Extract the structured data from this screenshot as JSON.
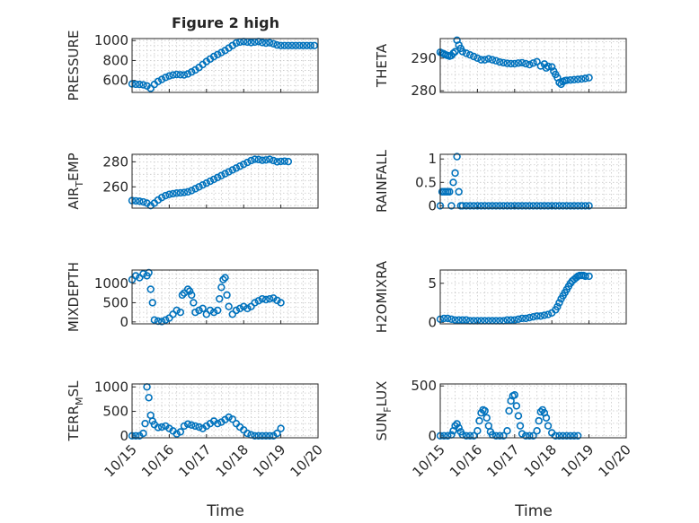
{
  "figure": {
    "title": "Figure 2 high",
    "xlabel": "Time",
    "marker_color": "#0072BD",
    "x_ticks": [
      "10/15",
      "10/16",
      "10/17",
      "10/18",
      "10/19",
      "10/20"
    ]
  },
  "chart_data": [
    {
      "type": "scatter",
      "name": "pressure",
      "ylabel": "PRESSURE",
      "xlim": [
        0,
        5
      ],
      "ylim": [
        480,
        1020
      ],
      "yticks": [
        600,
        800,
        1000
      ],
      "grid": true,
      "x": [
        0.0,
        0.1,
        0.2,
        0.3,
        0.4,
        0.5,
        0.6,
        0.7,
        0.8,
        0.9,
        1.0,
        1.1,
        1.2,
        1.3,
        1.4,
        1.5,
        1.6,
        1.7,
        1.8,
        1.9,
        2.0,
        2.1,
        2.2,
        2.3,
        2.4,
        2.5,
        2.6,
        2.7,
        2.8,
        2.9,
        3.0,
        3.1,
        3.2,
        3.3,
        3.4,
        3.5,
        3.6,
        3.7,
        3.8,
        3.9,
        4.0,
        4.1,
        4.2,
        4.3,
        4.4,
        4.5,
        4.6,
        4.7,
        4.8,
        4.9
      ],
      "y": [
        565,
        562,
        560,
        556,
        545,
        520,
        560,
        590,
        610,
        630,
        645,
        655,
        660,
        657,
        655,
        665,
        685,
        705,
        730,
        760,
        790,
        815,
        840,
        860,
        880,
        900,
        925,
        950,
        975,
        985,
        990,
        985,
        980,
        985,
        990,
        980,
        975,
        978,
        968,
        955,
        950,
        950,
        950,
        950,
        950,
        950,
        950,
        950,
        950,
        950
      ]
    },
    {
      "type": "scatter",
      "name": "theta",
      "ylabel": "THETA",
      "xlim": [
        0,
        5
      ],
      "ylim": [
        279.5,
        296
      ],
      "yticks": [
        280,
        290
      ],
      "grid": true,
      "x": [
        0.0,
        0.05,
        0.1,
        0.15,
        0.2,
        0.25,
        0.3,
        0.35,
        0.4,
        0.45,
        0.5,
        0.55,
        0.6,
        0.7,
        0.8,
        0.9,
        1.0,
        1.1,
        1.2,
        1.3,
        1.4,
        1.5,
        1.6,
        1.7,
        1.8,
        1.9,
        2.0,
        2.1,
        2.2,
        2.3,
        2.4,
        2.5,
        2.6,
        2.7,
        2.8,
        2.85,
        2.9,
        3.0,
        3.05,
        3.1,
        3.15,
        3.2,
        3.25,
        3.3,
        3.35,
        3.4,
        3.5,
        3.6,
        3.7,
        3.8,
        3.9,
        4.0
      ],
      "y": [
        291.8,
        291.5,
        291.3,
        291.0,
        290.8,
        290.6,
        290.8,
        291.5,
        292.0,
        295.5,
        294.0,
        293.0,
        292.0,
        291.5,
        291.0,
        290.5,
        290.0,
        289.5,
        289.5,
        289.8,
        289.5,
        289.2,
        288.8,
        288.6,
        288.4,
        288.3,
        288.3,
        288.5,
        288.6,
        288.3,
        288.0,
        288.5,
        288.9,
        287.6,
        288.2,
        287.0,
        287.5,
        287.3,
        286.0,
        285.0,
        284.0,
        282.5,
        282.0,
        282.8,
        283.1,
        283.2,
        283.3,
        283.4,
        283.5,
        283.6,
        283.8,
        284.0
      ]
    },
    {
      "type": "scatter",
      "name": "air-temp",
      "ylabel": "AIR_TEMP",
      "xlim": [
        0,
        5
      ],
      "ylim": [
        243,
        286
      ],
      "yticks": [
        260,
        280
      ],
      "grid": true,
      "x": [
        0.0,
        0.1,
        0.2,
        0.3,
        0.4,
        0.5,
        0.6,
        0.7,
        0.8,
        0.9,
        1.0,
        1.1,
        1.2,
        1.3,
        1.4,
        1.5,
        1.6,
        1.7,
        1.8,
        1.9,
        2.0,
        2.1,
        2.2,
        2.3,
        2.4,
        2.5,
        2.6,
        2.7,
        2.8,
        2.9,
        3.0,
        3.1,
        3.2,
        3.3,
        3.4,
        3.5,
        3.6,
        3.7,
        3.8,
        3.9,
        4.0,
        4.1,
        4.2
      ],
      "y": [
        249,
        248.8,
        248.5,
        248,
        247,
        245,
        247,
        249.5,
        251.5,
        253,
        254,
        254.5,
        255,
        255.2,
        255.5,
        256,
        257,
        258.5,
        260,
        261.5,
        263,
        264.5,
        266,
        267.5,
        269,
        270.5,
        272,
        273.5,
        275,
        276.5,
        278,
        279.5,
        281,
        282,
        281.8,
        281.2,
        281.5,
        282,
        281,
        280,
        280.3,
        280.5,
        280.2
      ]
    },
    {
      "type": "scatter",
      "name": "rainfall",
      "ylabel": "RAINFALL",
      "xlim": [
        0,
        5
      ],
      "ylim": [
        -0.05,
        1.1
      ],
      "yticks": [
        0,
        0.5,
        1
      ],
      "grid": true,
      "x": [
        0.0,
        0.05,
        0.1,
        0.15,
        0.2,
        0.25,
        0.3,
        0.35,
        0.4,
        0.45,
        0.5,
        0.55,
        0.6,
        0.7,
        0.8,
        0.9,
        1.0,
        1.1,
        1.2,
        1.3,
        1.4,
        1.5,
        1.6,
        1.7,
        1.8,
        1.9,
        2.0,
        2.1,
        2.2,
        2.3,
        2.4,
        2.5,
        2.6,
        2.7,
        2.8,
        2.9,
        3.0,
        3.1,
        3.2,
        3.3,
        3.4,
        3.5,
        3.6,
        3.7,
        3.8,
        3.9,
        4.0
      ],
      "y": [
        0,
        0.3,
        0.3,
        0.3,
        0.3,
        0.3,
        0,
        0.5,
        0.7,
        1.05,
        0.3,
        0,
        0,
        0,
        0,
        0,
        0,
        0,
        0,
        0,
        0,
        0,
        0,
        0,
        0,
        0,
        0,
        0,
        0,
        0,
        0,
        0,
        0,
        0,
        0,
        0,
        0,
        0,
        0,
        0,
        0,
        0,
        0,
        0,
        0,
        0,
        0
      ]
    },
    {
      "type": "scatter",
      "name": "mixdepth",
      "ylabel": "MIXDEPTH",
      "xlim": [
        0,
        5
      ],
      "ylim": [
        -50,
        1350
      ],
      "yticks": [
        0,
        500,
        1000
      ],
      "grid": true,
      "x": [
        0.0,
        0.1,
        0.2,
        0.3,
        0.4,
        0.45,
        0.5,
        0.55,
        0.6,
        0.7,
        0.8,
        0.9,
        1.0,
        1.1,
        1.2,
        1.3,
        1.35,
        1.4,
        1.5,
        1.55,
        1.6,
        1.65,
        1.7,
        1.8,
        1.9,
        2.0,
        2.1,
        2.2,
        2.3,
        2.35,
        2.4,
        2.45,
        2.5,
        2.55,
        2.6,
        2.7,
        2.8,
        2.9,
        3.0,
        3.1,
        3.2,
        3.3,
        3.4,
        3.5,
        3.6,
        3.7,
        3.8,
        3.9,
        4.0
      ],
      "y": [
        1100,
        1200,
        1150,
        1250,
        1200,
        1280,
        850,
        500,
        50,
        20,
        10,
        50,
        100,
        200,
        300,
        250,
        700,
        750,
        850,
        800,
        700,
        500,
        250,
        300,
        350,
        200,
        300,
        250,
        300,
        600,
        900,
        1100,
        1150,
        700,
        400,
        200,
        300,
        350,
        400,
        350,
        400,
        500,
        550,
        600,
        580,
        600,
        620,
        560,
        500
      ]
    },
    {
      "type": "scatter",
      "name": "h2o-mixing-ratio",
      "ylabel": "H2OMIXRA",
      "xlim": [
        0,
        5
      ],
      "ylim": [
        -0.2,
        6.7
      ],
      "yticks": [
        0,
        5
      ],
      "grid": true,
      "x": [
        0.0,
        0.1,
        0.2,
        0.3,
        0.4,
        0.5,
        0.6,
        0.7,
        0.8,
        0.9,
        1.0,
        1.1,
        1.2,
        1.3,
        1.4,
        1.5,
        1.6,
        1.7,
        1.8,
        1.9,
        2.0,
        2.1,
        2.2,
        2.3,
        2.4,
        2.5,
        2.6,
        2.7,
        2.8,
        2.9,
        3.0,
        3.1,
        3.15,
        3.2,
        3.25,
        3.3,
        3.35,
        3.4,
        3.45,
        3.5,
        3.55,
        3.6,
        3.65,
        3.7,
        3.75,
        3.8,
        3.85,
        3.9,
        4.0
      ],
      "y": [
        0.4,
        0.5,
        0.5,
        0.4,
        0.3,
        0.3,
        0.3,
        0.3,
        0.2,
        0.2,
        0.2,
        0.2,
        0.2,
        0.2,
        0.2,
        0.2,
        0.2,
        0.2,
        0.3,
        0.3,
        0.3,
        0.4,
        0.5,
        0.5,
        0.6,
        0.7,
        0.8,
        0.8,
        0.9,
        1.0,
        1.2,
        1.6,
        2.0,
        2.5,
        3.0,
        3.4,
        3.8,
        4.2,
        4.6,
        5.0,
        5.3,
        5.5,
        5.7,
        5.9,
        6.0,
        6.0,
        6.0,
        5.9,
        5.9
      ]
    },
    {
      "type": "scatter",
      "name": "terr-msl",
      "ylabel": "TERR_MSL",
      "xlim": [
        0,
        5
      ],
      "ylim": [
        -40,
        1060
      ],
      "yticks": [
        0,
        500,
        1000
      ],
      "grid": true,
      "x": [
        0.0,
        0.1,
        0.2,
        0.3,
        0.35,
        0.4,
        0.45,
        0.5,
        0.55,
        0.6,
        0.7,
        0.8,
        0.9,
        1.0,
        1.1,
        1.2,
        1.3,
        1.4,
        1.5,
        1.6,
        1.7,
        1.8,
        1.9,
        2.0,
        2.1,
        2.2,
        2.3,
        2.4,
        2.5,
        2.6,
        2.7,
        2.8,
        2.9,
        3.0,
        3.1,
        3.2,
        3.3,
        3.4,
        3.5,
        3.6,
        3.7,
        3.8,
        3.9,
        4.0
      ],
      "y": [
        0,
        0,
        0,
        50,
        250,
        1000,
        780,
        420,
        300,
        230,
        170,
        180,
        200,
        150,
        100,
        40,
        80,
        200,
        240,
        220,
        200,
        180,
        150,
        200,
        250,
        300,
        250,
        280,
        330,
        380,
        340,
        250,
        180,
        120,
        50,
        20,
        0,
        0,
        0,
        0,
        0,
        0,
        50,
        150
      ]
    },
    {
      "type": "scatter",
      "name": "sun-flux",
      "ylabel": "SUN_FLUX",
      "xlim": [
        0,
        5
      ],
      "ylim": [
        -20,
        520
      ],
      "yticks": [
        0,
        500
      ],
      "grid": true,
      "x": [
        0.0,
        0.1,
        0.2,
        0.3,
        0.35,
        0.4,
        0.45,
        0.5,
        0.55,
        0.6,
        0.7,
        0.8,
        0.9,
        1.0,
        1.05,
        1.1,
        1.15,
        1.2,
        1.25,
        1.3,
        1.35,
        1.4,
        1.5,
        1.6,
        1.7,
        1.8,
        1.85,
        1.9,
        1.95,
        2.0,
        2.05,
        2.1,
        2.15,
        2.2,
        2.3,
        2.4,
        2.5,
        2.6,
        2.65,
        2.7,
        2.75,
        2.8,
        2.85,
        2.9,
        3.0,
        3.1,
        3.2,
        3.3,
        3.4,
        3.5,
        3.6,
        3.7
      ],
      "y": [
        0,
        0,
        0,
        10,
        50,
        100,
        120,
        80,
        40,
        10,
        0,
        0,
        0,
        50,
        150,
        230,
        260,
        250,
        180,
        100,
        40,
        10,
        0,
        0,
        0,
        50,
        250,
        350,
        400,
        410,
        300,
        200,
        100,
        20,
        0,
        0,
        0,
        50,
        150,
        240,
        260,
        230,
        180,
        100,
        30,
        0,
        0,
        0,
        0,
        0,
        0,
        0
      ]
    }
  ]
}
